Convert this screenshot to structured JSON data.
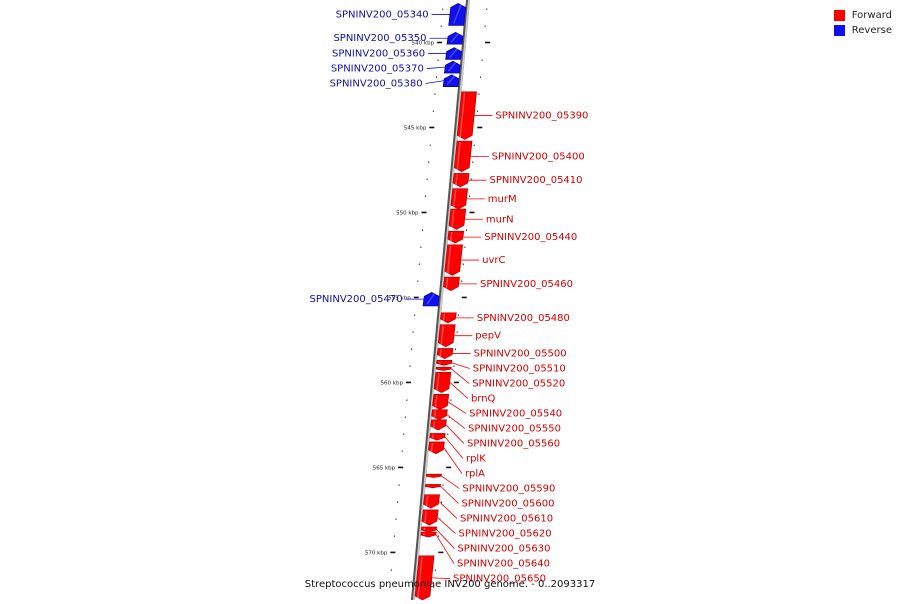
{
  "legend": {
    "forward_label": "Forward",
    "reverse_label": "Reverse",
    "forward_color": "#ff0000",
    "reverse_color": "#1010ee"
  },
  "caption": "Streptococcus pneumoniae INV200 genome. - 0..2093317",
  "axis": {
    "start_kbp": 537.5,
    "end_kbp": 572.8,
    "ticks": [
      {
        "kbp": 540,
        "label": "540 kbp"
      },
      {
        "kbp": 545,
        "label": "545 kbp"
      },
      {
        "kbp": 550,
        "label": "550 kbp"
      },
      {
        "kbp": 555,
        "label": "555 kbp"
      },
      {
        "kbp": 560,
        "label": "560 kbp"
      },
      {
        "kbp": 565,
        "label": "565 kbp"
      },
      {
        "kbp": 570,
        "label": "570 kbp"
      }
    ]
  },
  "genes": [
    {
      "name": "SPNINV200_05340",
      "strand": "reverse",
      "start": 537.7,
      "end": 539.0
    },
    {
      "name": "SPNINV200_05350",
      "strand": "reverse",
      "start": 539.4,
      "end": 540.1
    },
    {
      "name": "SPNINV200_05360",
      "strand": "reverse",
      "start": 540.3,
      "end": 541.0
    },
    {
      "name": "SPNINV200_05370",
      "strand": "reverse",
      "start": 541.1,
      "end": 541.8
    },
    {
      "name": "SPNINV200_05380",
      "strand": "reverse",
      "start": 541.9,
      "end": 542.6
    },
    {
      "name": "SPNINV200_05390",
      "strand": "forward",
      "start": 542.9,
      "end": 545.7
    },
    {
      "name": "SPNINV200_05400",
      "strand": "forward",
      "start": 545.8,
      "end": 547.6
    },
    {
      "name": "SPNINV200_05410",
      "strand": "forward",
      "start": 547.7,
      "end": 548.5
    },
    {
      "name": "murM",
      "strand": "forward",
      "start": 548.6,
      "end": 549.8
    },
    {
      "name": "murN",
      "strand": "forward",
      "start": 549.8,
      "end": 551.0
    },
    {
      "name": "SPNINV200_05440",
      "strand": "forward",
      "start": 551.1,
      "end": 551.8
    },
    {
      "name": "uvrC",
      "strand": "forward",
      "start": 551.9,
      "end": 553.7
    },
    {
      "name": "SPNINV200_05460",
      "strand": "forward",
      "start": 553.8,
      "end": 554.6
    },
    {
      "name": "SPNINV200_05470",
      "strand": "reverse",
      "start": 554.7,
      "end": 555.5
    },
    {
      "name": "SPNINV200_05480",
      "strand": "forward",
      "start": 555.9,
      "end": 556.5
    },
    {
      "name": "pepV",
      "strand": "forward",
      "start": 556.6,
      "end": 557.9
    },
    {
      "name": "SPNINV200_05500",
      "strand": "forward",
      "start": 558.0,
      "end": 558.6
    },
    {
      "name": "SPNINV200_05510",
      "strand": "forward",
      "start": 558.7,
      "end": 559.0
    },
    {
      "name": "SPNINV200_05520",
      "strand": "forward",
      "start": 559.1,
      "end": 559.3
    },
    {
      "name": "brnQ",
      "strand": "forward",
      "start": 559.4,
      "end": 560.6
    },
    {
      "name": "SPNINV200_05540",
      "strand": "forward",
      "start": 560.7,
      "end": 561.6
    },
    {
      "name": "SPNINV200_05550",
      "strand": "forward",
      "start": 561.6,
      "end": 562.2
    },
    {
      "name": "SPNINV200_05560",
      "strand": "forward",
      "start": 562.2,
      "end": 562.8
    },
    {
      "name": "rplK",
      "strand": "forward",
      "start": 563.0,
      "end": 563.4
    },
    {
      "name": "rplA",
      "strand": "forward",
      "start": 563.5,
      "end": 564.2
    },
    {
      "name": "SPNINV200_05590",
      "strand": "forward",
      "start": 565.4,
      "end": 565.6
    },
    {
      "name": "SPNINV200_05600",
      "strand": "forward",
      "start": 566.0,
      "end": 566.2
    },
    {
      "name": "SPNINV200_05610",
      "strand": "forward",
      "start": 566.6,
      "end": 567.4
    },
    {
      "name": "SPNINV200_05620",
      "strand": "forward",
      "start": 567.5,
      "end": 568.4
    },
    {
      "name": "SPNINV200_05630",
      "strand": "forward",
      "start": 568.5,
      "end": 568.8
    },
    {
      "name": "SPNINV200_05640",
      "strand": "forward",
      "start": 568.8,
      "end": 569.1
    },
    {
      "name": "SPNINV200_05650",
      "strand": "forward",
      "start": 570.2,
      "end": 572.8
    }
  ]
}
